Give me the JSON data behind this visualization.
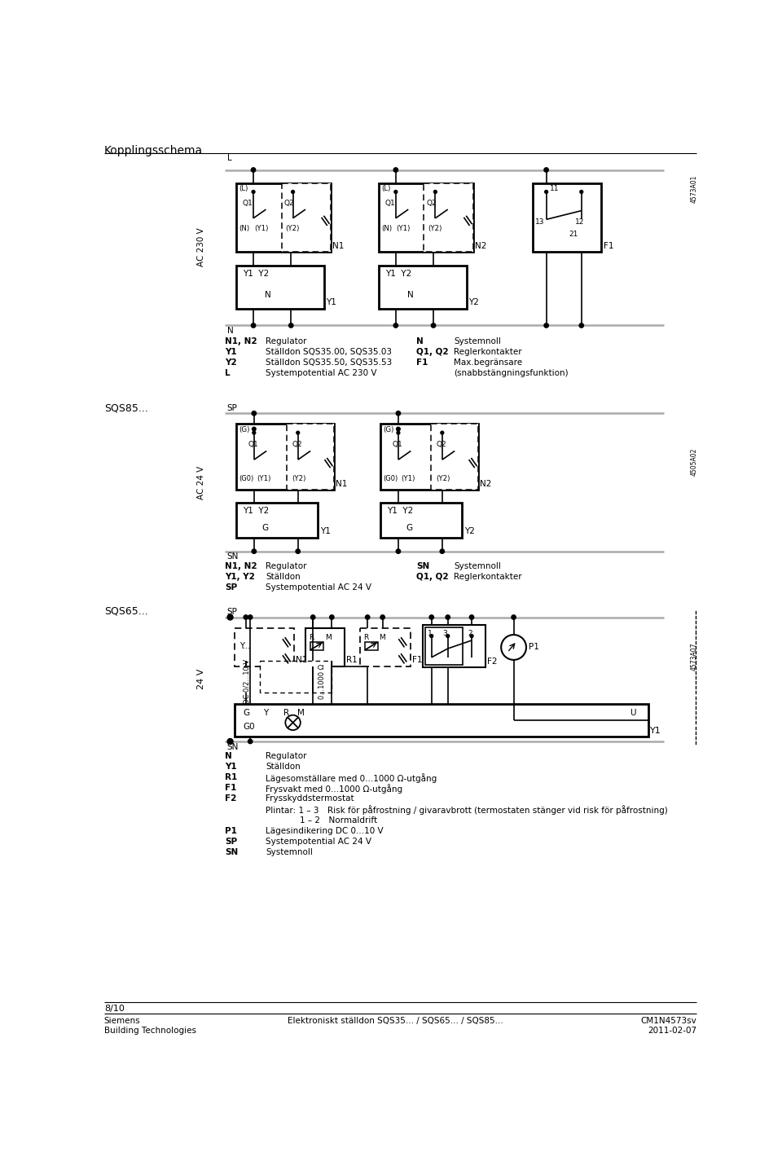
{
  "bg": "#ffffff",
  "lc": "#000000",
  "glc": "#aaaaaa",
  "title": "Kopplingsschema",
  "sqs85_label": "SQS85...",
  "sqs65_label": "SQS65...",
  "page": "8/10",
  "footer_company": "Siemens",
  "footer_dept": "Building Technologies",
  "footer_doc": "Elektroniskt ställdon SQS35... / SQS65... / SQS85...",
  "footer_ref": "CM1N4573sv",
  "footer_date": "2011-02-07",
  "ref1": "4573A01",
  "ref2": "4505A02",
  "ref3": "4573A07",
  "legend1": [
    [
      "N1, N2",
      "Regulator",
      "N",
      "Systemnoll"
    ],
    [
      "Y1",
      "Ställdon SQS35.00, SQS35.03",
      "Q1, Q2",
      "Reglerkontakter"
    ],
    [
      "Y2",
      "Ställdon SQS35.50, SQS35.53",
      "F1",
      "Max.begränsare"
    ],
    [
      "L",
      "Systempotential AC 230 V",
      "",
      "(snabbstängningsfunktion)"
    ]
  ],
  "legend2": [
    [
      "N1, N2",
      "Regulator",
      "SN",
      "Systemnoll"
    ],
    [
      "Y1, Y2",
      "Ställdon",
      "Q1, Q2",
      "Reglerkontakter"
    ],
    [
      "SP",
      "Systempotential AC 24 V",
      "",
      ""
    ]
  ],
  "legend3": [
    [
      "N",
      "Regulator"
    ],
    [
      "Y1",
      "Ställdon"
    ],
    [
      "R1",
      "Lägesomställare med 0...1000 Ω-utgång"
    ],
    [
      "F1",
      "Frysvakt med 0...1000 Ω-utgång"
    ],
    [
      "F2",
      "Frysskyddstermostat"
    ],
    [
      "",
      "Plintar: 1 – 3  Risk för påfrostning / givaravbrott (termostaten stänger vid risk för påfrostning)"
    ],
    [
      "",
      "        1 – 2  Normaldrift"
    ],
    [
      "P1",
      "Lägesindikering DC 0...10 V"
    ],
    [
      "SP",
      "Systempotential AC 24 V"
    ],
    [
      "SN",
      "Systemnoll"
    ]
  ]
}
